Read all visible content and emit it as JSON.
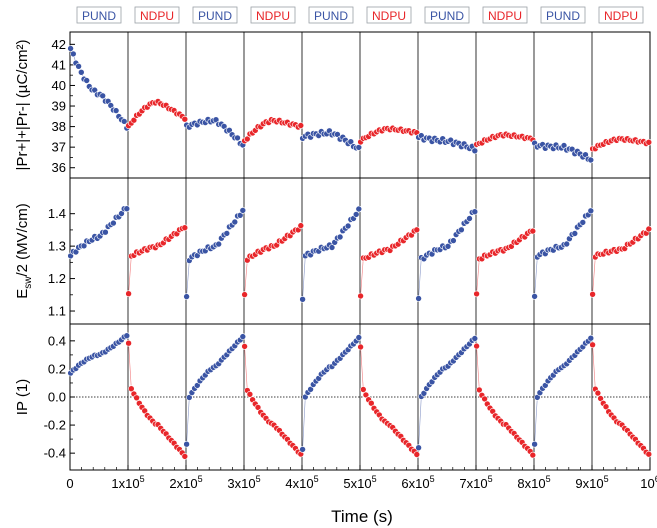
{
  "chart_data": {
    "type": "scatter",
    "xlabel": "Time (s)",
    "xlim": [
      0,
      1000000
    ],
    "x_tick_values": [
      0,
      100000,
      200000,
      300000,
      400000,
      500000,
      600000,
      700000,
      800000,
      900000,
      1000000
    ],
    "x_tick_labels": [
      {
        "base": "0",
        "exp": ""
      },
      {
        "base": "1x10",
        "exp": "5"
      },
      {
        "base": "2x10",
        "exp": "5"
      },
      {
        "base": "3x10",
        "exp": "5"
      },
      {
        "base": "4x10",
        "exp": "5"
      },
      {
        "base": "5x10",
        "exp": "5"
      },
      {
        "base": "6x10",
        "exp": "5"
      },
      {
        "base": "7x10",
        "exp": "5"
      },
      {
        "base": "8x10",
        "exp": "5"
      },
      {
        "base": "9x10",
        "exp": "5"
      },
      {
        "base": "10",
        "exp": "6"
      }
    ],
    "segment_boundaries": [
      100000,
      200000,
      300000,
      400000,
      500000,
      600000,
      700000,
      800000,
      900000
    ],
    "segment_labels": [
      "PUND",
      "NDPU",
      "PUND",
      "NDPU",
      "PUND",
      "NDPU",
      "PUND",
      "NDPU",
      "PUND",
      "NDPU"
    ],
    "segment_kinds": [
      "pund",
      "ndpu",
      "pund",
      "ndpu",
      "pund",
      "ndpu",
      "pund",
      "ndpu",
      "pund",
      "ndpu"
    ],
    "colors": {
      "pund": "#3a54a4",
      "ndpu": "#e8262a",
      "frame": "#000000"
    },
    "panels": [
      {
        "ylabel": "|Pr+|+|Pr-| (µC/cm²)",
        "ylim": [
          35.5,
          42.6
        ],
        "yticks": [
          36,
          37,
          38,
          39,
          40,
          41,
          42
        ],
        "ytick_labels": [
          "36",
          "37",
          "38",
          "39",
          "40",
          "41",
          "42"
        ],
        "zero_line": false,
        "segments": [
          {
            "start": 41.8,
            "mid": 39.6,
            "end": 38.0,
            "wiggle": 0.08
          },
          {
            "start": 38.0,
            "mid": 39.2,
            "end": 38.4,
            "wiggle": 0.05
          },
          {
            "start": 38.0,
            "mid": 38.3,
            "end": 37.1,
            "wiggle": 0.08
          },
          {
            "start": 37.3,
            "mid": 38.3,
            "end": 38.0,
            "wiggle": 0.06
          },
          {
            "start": 37.5,
            "mid": 37.7,
            "end": 36.9,
            "wiggle": 0.1
          },
          {
            "start": 37.3,
            "mid": 37.9,
            "end": 37.7,
            "wiggle": 0.05
          },
          {
            "start": 37.5,
            "mid": 37.3,
            "end": 36.9,
            "wiggle": 0.1
          },
          {
            "start": 37.1,
            "mid": 37.6,
            "end": 37.4,
            "wiggle": 0.05
          },
          {
            "start": 37.1,
            "mid": 37.0,
            "end": 36.4,
            "wiggle": 0.1
          },
          {
            "start": 36.9,
            "mid": 37.4,
            "end": 37.2,
            "wiggle": 0.05
          }
        ]
      },
      {
        "ylabel_main": "E",
        "ylabel_sub": "sw",
        "ylabel_rest": "/2 (MV/cm)",
        "ylim": [
          1.06,
          1.51
        ],
        "yticks": [
          1.1,
          1.2,
          1.3,
          1.4
        ],
        "ytick_labels": [
          "1.1",
          "1.2",
          "1.3",
          "1.4"
        ],
        "zero_line": false,
        "segments": [
          {
            "start": 1.27,
            "mid": 1.33,
            "end": 1.42,
            "wiggle": 0.005,
            "jump": 1.28
          },
          {
            "start": 1.15,
            "mid": 1.3,
            "end": 1.36,
            "wiggle": 0.004,
            "jump": 1.27
          },
          {
            "start": 1.14,
            "mid": 1.3,
            "end": 1.41,
            "wiggle": 0.005,
            "jump": 1.26
          },
          {
            "start": 1.15,
            "mid": 1.3,
            "end": 1.36,
            "wiggle": 0.004,
            "jump": 1.26
          },
          {
            "start": 1.14,
            "mid": 1.3,
            "end": 1.41,
            "wiggle": 0.005,
            "jump": 1.27
          },
          {
            "start": 1.15,
            "mid": 1.29,
            "end": 1.35,
            "wiggle": 0.004,
            "jump": 1.26
          },
          {
            "start": 1.14,
            "mid": 1.3,
            "end": 1.41,
            "wiggle": 0.005,
            "jump": 1.26
          },
          {
            "start": 1.15,
            "mid": 1.29,
            "end": 1.35,
            "wiggle": 0.004,
            "jump": 1.26
          },
          {
            "start": 1.14,
            "mid": 1.3,
            "end": 1.41,
            "wiggle": 0.005,
            "jump": 1.27
          },
          {
            "start": 1.15,
            "mid": 1.29,
            "end": 1.35,
            "wiggle": 0.004,
            "jump": 1.27
          }
        ]
      },
      {
        "ylabel": "IP (1)",
        "ylim": [
          -0.52,
          0.52
        ],
        "yticks": [
          -0.4,
          -0.2,
          0.0,
          0.2,
          0.4
        ],
        "ytick_labels": [
          "-0.4",
          "-0.2",
          "0.0",
          "0.2",
          "0.4"
        ],
        "zero_line": true,
        "segments": [
          {
            "start": 0.17,
            "mid": 0.3,
            "end": 0.44,
            "wiggle": 0.004
          },
          {
            "start": 0.38,
            "mid": -0.2,
            "end": -0.42,
            "wiggle": 0.004,
            "jump": 0.06
          },
          {
            "start": -0.34,
            "mid": 0.22,
            "end": 0.43,
            "wiggle": 0.004,
            "jump": 0.0
          },
          {
            "start": 0.36,
            "mid": -0.2,
            "end": -0.41,
            "wiggle": 0.004,
            "jump": 0.05
          },
          {
            "start": -0.37,
            "mid": 0.22,
            "end": 0.42,
            "wiggle": 0.004,
            "jump": 0.0
          },
          {
            "start": 0.36,
            "mid": -0.2,
            "end": -0.41,
            "wiggle": 0.004,
            "jump": 0.05
          },
          {
            "start": -0.36,
            "mid": 0.22,
            "end": 0.42,
            "wiggle": 0.004,
            "jump": 0.0
          },
          {
            "start": 0.36,
            "mid": -0.2,
            "end": -0.41,
            "wiggle": 0.004,
            "jump": 0.05
          },
          {
            "start": -0.34,
            "mid": 0.22,
            "end": 0.42,
            "wiggle": 0.004,
            "jump": 0.0
          },
          {
            "start": 0.37,
            "mid": -0.2,
            "end": -0.41,
            "wiggle": 0.004,
            "jump": 0.06
          }
        ]
      }
    ]
  }
}
